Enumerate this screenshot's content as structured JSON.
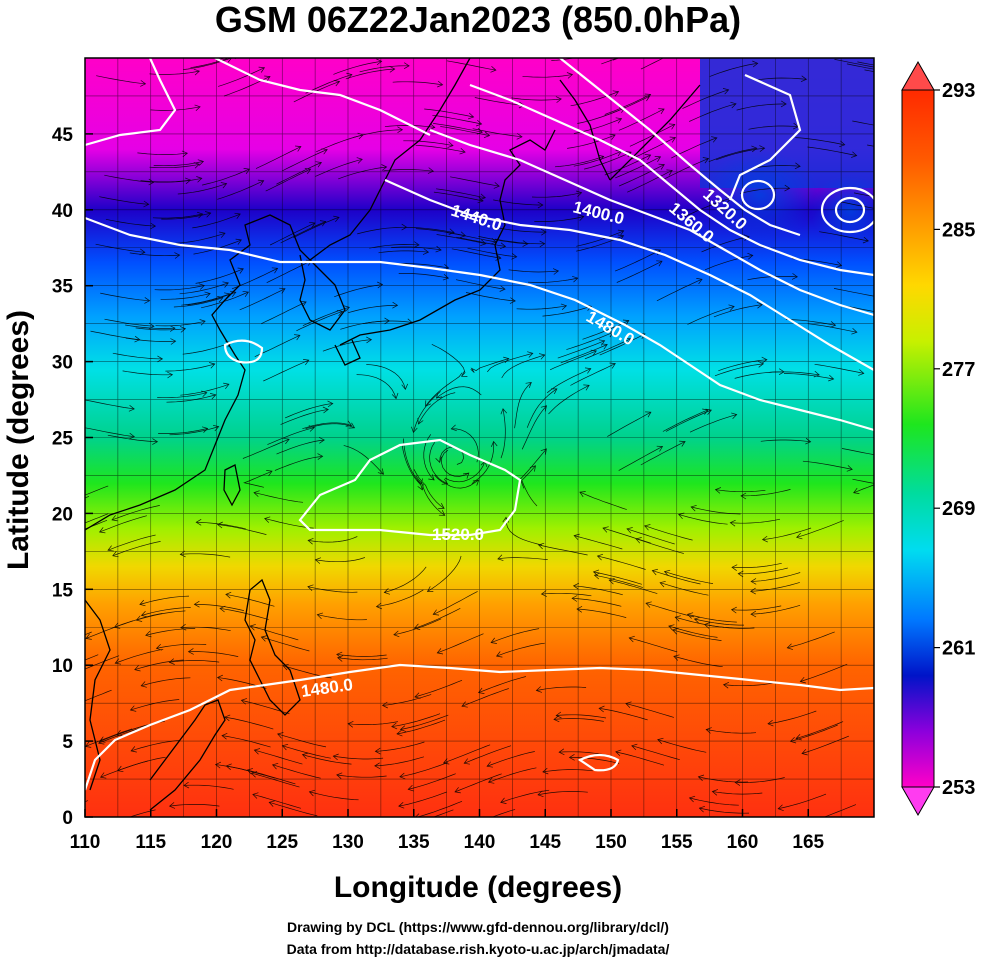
{
  "title": "GSM 06Z22Jan2023 (850.0hPa)",
  "xlabel": "Longitude (degrees)",
  "ylabel": "Latitude  (degrees)",
  "x_ticks": [
    "110",
    "115",
    "120",
    "125",
    "130",
    "135",
    "140",
    "145",
    "150",
    "155",
    "160",
    "165"
  ],
  "y_ticks": [
    "0",
    "5",
    "10",
    "15",
    "20",
    "25",
    "30",
    "35",
    "40",
    "45"
  ],
  "colorbar": {
    "ticks": [
      "293",
      "285",
      "277",
      "269",
      "261",
      "253"
    ],
    "min": 253,
    "max": 293
  },
  "contour_labels": [
    "1440.0",
    "1400.0",
    "1360.0",
    "1320.0",
    "1480.0",
    "1520.0",
    "1480.0"
  ],
  "credits": [
    "Drawing by DCL (https://www.gfd-dennou.org/library/dcl/)",
    "Data from http://database.rish.kyoto-u.ac.jp/arch/jmadata/"
  ],
  "chart_data": {
    "type": "heatmap",
    "variable_hint": "temperature shading with geopotential height contours and wind streamlines",
    "xlim": [
      110,
      170
    ],
    "ylim": [
      0,
      50
    ],
    "color_range": [
      253,
      293
    ],
    "contour_levels": [
      1320.0,
      1360.0,
      1400.0,
      1440.0,
      1480.0,
      1520.0
    ]
  }
}
